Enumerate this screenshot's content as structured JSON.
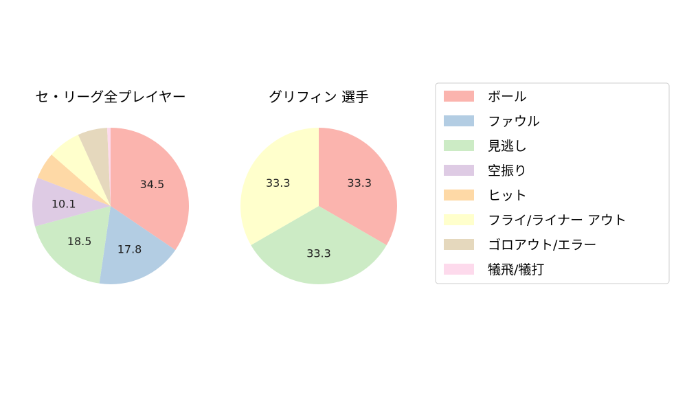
{
  "chart_data": {
    "type": "pie",
    "legend": {
      "placement": "right",
      "entries": [
        {
          "label": "ボール",
          "color": "#fbb4ae"
        },
        {
          "label": "ファウル",
          "color": "#b3cde3"
        },
        {
          "label": "見逃し",
          "color": "#ccebc5"
        },
        {
          "label": "空振り",
          "color": "#decbe4"
        },
        {
          "label": "ヒット",
          "color": "#fed9a6"
        },
        {
          "label": "フライ/ライナー アウト",
          "color": "#ffffcc"
        },
        {
          "label": "ゴロアウト/エラー",
          "color": "#e5d8bd"
        },
        {
          "label": "犠飛/犠打",
          "color": "#fddaec"
        }
      ]
    },
    "pies": [
      {
        "title": "セ・リーグ全プレイヤー",
        "values": [
          34.5,
          17.8,
          18.5,
          10.1,
          5.5,
          6.8,
          6.1,
          0.7
        ],
        "labels": [
          "34.5",
          "17.8",
          "18.5",
          "10.1",
          "",
          "",
          "",
          ""
        ]
      },
      {
        "title": "グリフィン  選手",
        "values": [
          33.3,
          0,
          33.3,
          0,
          0,
          33.3,
          0,
          0
        ],
        "labels": [
          "33.3",
          "",
          "33.3",
          "",
          "",
          "33.3",
          "",
          ""
        ]
      }
    ]
  }
}
